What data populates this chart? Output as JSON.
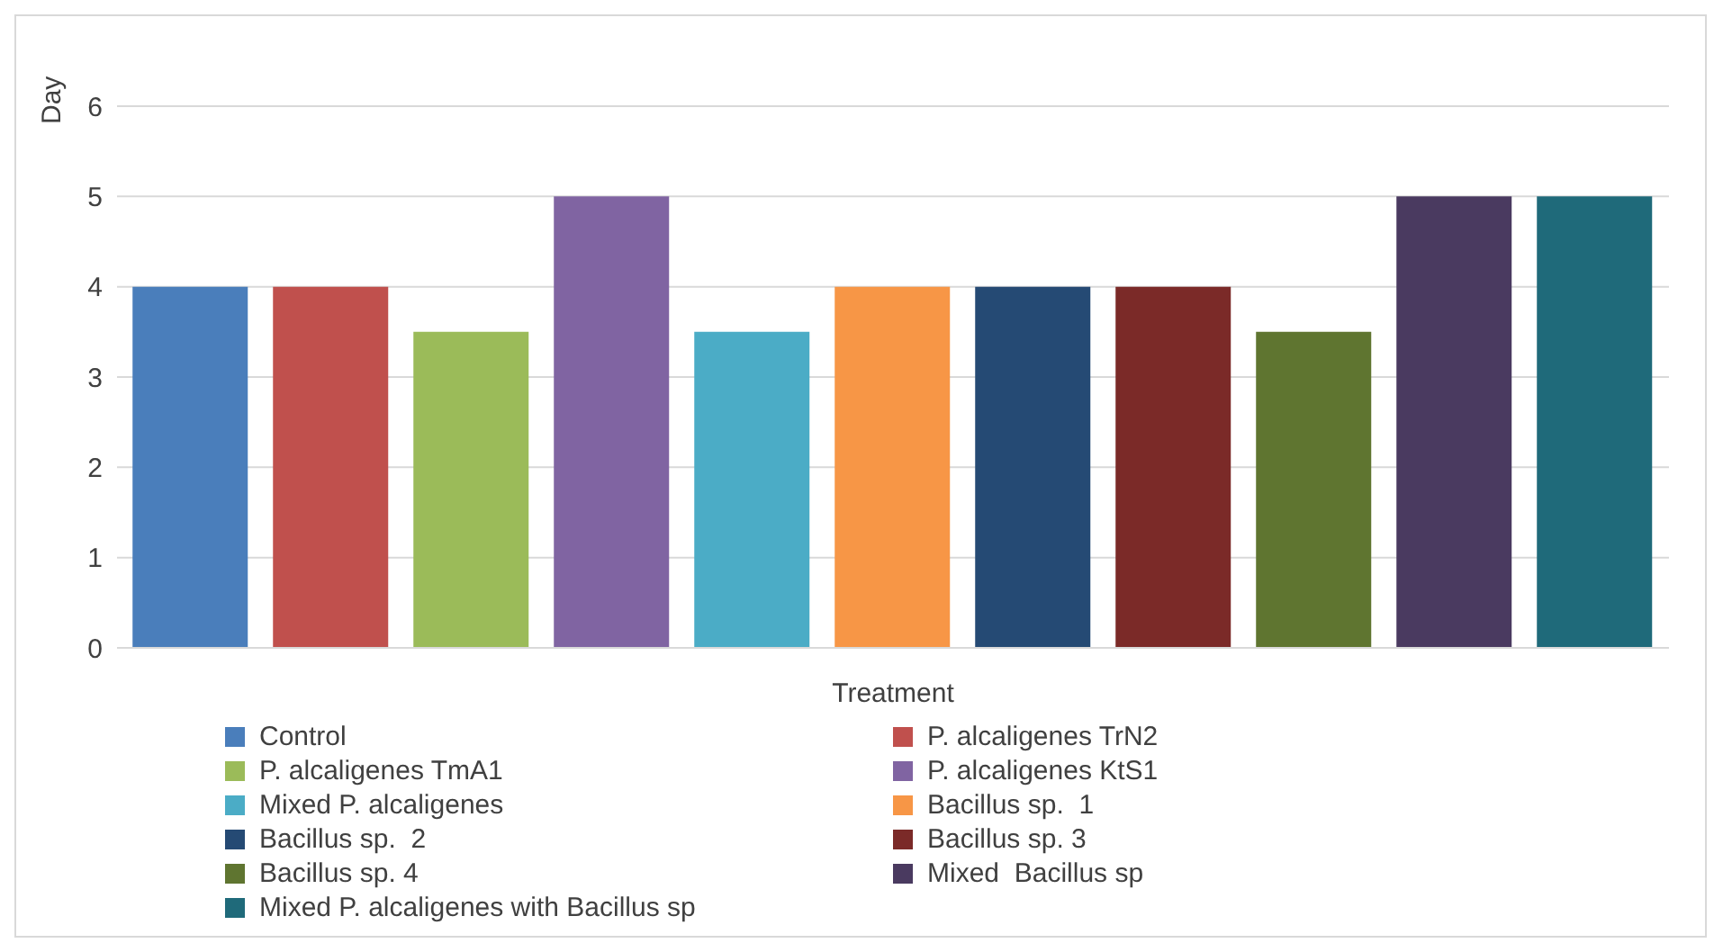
{
  "chart_data": {
    "type": "bar",
    "xlabel": "Treatment",
    "ylabel": "Day",
    "categories": [
      null
    ],
    "series": [
      {
        "name": "Control",
        "color": "#4a7ebb",
        "values": [
          4
        ]
      },
      {
        "name": "P. alcaligenes TrN2",
        "color": "#c0504d",
        "values": [
          4
        ]
      },
      {
        "name": "P. alcaligenes TmA1",
        "color": "#9bbb59",
        "values": [
          3.5
        ]
      },
      {
        "name": "P. alcaligenes KtS1",
        "color": "#8064a2",
        "values": [
          5
        ]
      },
      {
        "name": "Mixed P. alcaligenes",
        "color": "#4bacc6",
        "values": [
          3.5
        ]
      },
      {
        "name": "Bacillus sp.  1",
        "color": "#f79646",
        "values": [
          4
        ]
      },
      {
        "name": "Bacillus sp.  2",
        "color": "#254a74",
        "values": [
          4
        ]
      },
      {
        "name": "Bacillus sp. 3",
        "color": "#7b2a28",
        "values": [
          4
        ]
      },
      {
        "name": "Bacillus sp. 4",
        "color": "#5f7530",
        "values": [
          3.5
        ]
      },
      {
        "name": "Mixed  Bacillus sp",
        "color": "#4a3a60",
        "values": [
          5
        ]
      },
      {
        "name": "Mixed P. alcaligenes with Bacillus sp",
        "color": "#1f6a7a",
        "values": [
          5
        ]
      }
    ],
    "ylim": [
      0,
      6
    ],
    "yticks": [
      0,
      1,
      2,
      3,
      4,
      5,
      6
    ],
    "grid": "y",
    "legend": "bottom"
  }
}
